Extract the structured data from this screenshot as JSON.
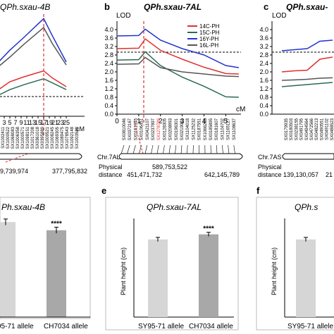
{
  "panel_b": {
    "letter": "b",
    "title": "QPh.sxau-7AL",
    "lod_label": "LOD",
    "cm_label": "cM",
    "chr_label": "Chr.7AL",
    "phys_label": "Physical",
    "dist_label": "distance",
    "pos_left": "451,471,732",
    "pos_mid": "589,753,522",
    "pos_right": "642,145,789",
    "markers": [
      "SX0810046",
      "SX0372167",
      "SX0161945",
      "SX0106451",
      "SX0421107",
      "SX0237897",
      "SX1278789",
      "SX0128305",
      "SX0208993",
      "SX0196301",
      "SX0219021",
      "SX1104018",
      "SX1125232",
      "SX0187551",
      "SX1066283",
      "SX0185895",
      "SX0181607",
      "SX1104702",
      "SX1165127",
      "SX1108637"
    ]
  },
  "panel_c": {
    "letter": "c",
    "title": "QPh.sxau-",
    "lod_label": "LOD",
    "chr_label": "Chr.7AS",
    "phys_label": "Physical",
    "dist_label": "distance",
    "pos_left": "139,130,057",
    "pos_right": "21",
    "markers": [
      "SX0179935",
      "SX0180503",
      "SX0238155",
      "SX0491795",
      "SX0494564",
      "SX0472566",
      "SX0482213",
      "SX0490551",
      "SX0491102",
      "SX0488523"
    ]
  },
  "panel_a": {
    "title": "QPh.sxau-4B",
    "cm_label": "cM",
    "pos_left": "9,739,974",
    "pos_right": "377,795,832",
    "markers": [
      "SX1002411",
      "SX1000522",
      "SX1068083",
      "SX1006358",
      "SX1000571",
      "SX1098151",
      "SX1017208",
      "SX0361018",
      "SX0395889",
      "SX1009521",
      "SX1008245",
      "SX1069305",
      "SX1089475",
      "SX1078543",
      "SX1092148",
      "SX1003589"
    ]
  },
  "panel_d": {
    "title": "Ph.sxau-4B",
    "bar2_label": "CH7034 allele",
    "bar1_label_partial": "95-71 allele",
    "sig": "****"
  },
  "panel_e": {
    "letter": "e",
    "title": "QPh.sxau-7AL",
    "ylabel": "Plant height (cm)",
    "bar1_label": "SY95-71 allele",
    "bar2_label": "CH7034 allele",
    "sig": "****"
  },
  "panel_f": {
    "letter": "f",
    "title": "QPh.s",
    "ylabel": "Plant height (cm)",
    "bar1_label": "SY95-71 allele"
  },
  "chart_data": [
    {
      "type": "line",
      "panel": "b",
      "ylabel": "LOD",
      "xlabel": "cM",
      "xlim": [
        0,
        5.7
      ],
      "ylim": [
        0,
        4.4
      ],
      "x_ticks": [
        0,
        1,
        2,
        3,
        4,
        5
      ],
      "y_ticks": [
        0,
        0.4,
        0.8,
        1.2,
        1.6,
        2.0,
        2.4,
        2.8,
        3.2,
        3.6,
        4.0
      ],
      "threshold": 2.5,
      "peak_x": 1.3,
      "series": [
        {
          "name": "14C-PH",
          "color": "#e03030",
          "x": [
            0,
            1.0,
            1.3,
            2.0,
            3.0,
            4.0,
            5.0,
            5.6
          ],
          "values": [
            3.1,
            3.12,
            3.56,
            3.02,
            2.6,
            2.22,
            1.92,
            1.9
          ]
        },
        {
          "name": "15C-PH",
          "color": "#2b6b55",
          "x": [
            0,
            1.0,
            1.3,
            2.0,
            3.0,
            4.0,
            5.0,
            5.6
          ],
          "values": [
            2.56,
            2.58,
            2.95,
            2.3,
            1.75,
            1.32,
            0.82,
            0.8
          ]
        },
        {
          "name": "16Y-PH",
          "color": "#2233cc",
          "x": [
            0,
            1.0,
            1.3,
            2.0,
            3.0,
            4.0,
            5.0,
            5.6
          ],
          "values": [
            3.7,
            3.72,
            4.02,
            3.5,
            3.1,
            2.8,
            2.3,
            2.2
          ]
        },
        {
          "name": "16L-PH",
          "color": "#555555",
          "x": [
            0,
            1.0,
            1.3,
            2.0,
            3.0,
            4.0,
            5.0,
            5.6
          ],
          "values": [
            2.36,
            2.38,
            2.68,
            2.2,
            2.0,
            1.9,
            1.8,
            1.78
          ]
        }
      ]
    },
    {
      "type": "line",
      "panel": "c",
      "ylabel": "LOD",
      "ylim": [
        0,
        4.4
      ],
      "y_ticks": [
        0,
        0.4,
        0.8,
        1.2,
        1.6,
        2.0,
        2.4,
        2.8,
        3.2,
        3.6,
        4.0
      ],
      "threshold": 2.5,
      "series": [
        {
          "name": "14C-PH",
          "color": "#e03030",
          "x": [
            0,
            1,
            2,
            3,
            4
          ],
          "values": [
            2.0,
            2.05,
            2.08,
            2.6,
            2.7
          ]
        },
        {
          "name": "15C-PH",
          "color": "#2b6b55",
          "x": [
            0,
            1,
            2,
            3,
            4
          ],
          "values": [
            1.3,
            1.35,
            1.4,
            1.45,
            1.5
          ]
        },
        {
          "name": "16Y-PH",
          "color": "#2233cc",
          "x": [
            0,
            1,
            2,
            3,
            4
          ],
          "values": [
            3.0,
            3.05,
            3.1,
            3.45,
            3.5
          ]
        },
        {
          "name": "16L-PH",
          "color": "#555555",
          "x": [
            0,
            1,
            2,
            3,
            4
          ],
          "values": [
            1.6,
            1.62,
            1.65,
            1.7,
            1.72
          ]
        }
      ]
    },
    {
      "type": "line",
      "panel": "a",
      "xlabel": "cM",
      "xlim": [
        0,
        26
      ],
      "x_ticks": [
        0,
        1,
        3,
        5,
        7,
        9,
        11,
        13,
        15,
        17,
        19,
        21,
        23,
        25
      ],
      "tick_labels": [
        "0",
        "1",
        "3",
        "5",
        "7",
        "9",
        "11",
        "13",
        "15",
        "17",
        "19",
        "21",
        "23",
        "25"
      ],
      "threshold": 2.5,
      "peak_x": 17,
      "series": [
        {
          "name": "16Y-PH",
          "color": "#2233cc",
          "x": [
            0,
            5,
            10,
            17,
            20,
            25
          ],
          "values": [
            5.2,
            6.7,
            8.0,
            9.9,
            8.2,
            5.5
          ]
        },
        {
          "name": "16L-PH",
          "color": "#555555",
          "x": [
            0,
            5,
            10,
            17,
            20,
            25
          ],
          "values": [
            4.8,
            6.0,
            7.3,
            9.0,
            7.4,
            5.2
          ]
        },
        {
          "name": "14C-PH",
          "color": "#e03030",
          "x": [
            0,
            5,
            10,
            17,
            20,
            25
          ],
          "values": [
            2.5,
            3.5,
            4.0,
            4.6,
            3.9,
            3.0
          ]
        },
        {
          "name": "15C-PH",
          "color": "#2b6b55",
          "x": [
            0,
            5,
            10,
            17,
            20,
            25
          ],
          "values": [
            2.0,
            2.7,
            3.2,
            3.8,
            3.4,
            2.7
          ]
        }
      ]
    },
    {
      "type": "bar",
      "panel": "d",
      "categories": [
        "95-71 allele",
        "CH7034 allele"
      ],
      "values": [
        93,
        85
      ],
      "errors": [
        1.5,
        1.5
      ],
      "colors": [
        "#d6d6d6",
        "#a8a8a8"
      ],
      "ylim": [
        0,
        100
      ]
    },
    {
      "type": "bar",
      "panel": "e",
      "categories": [
        "SY95-71 allele",
        "CH7034 allele"
      ],
      "values": [
        76,
        81
      ],
      "errors": [
        1.0,
        1.0
      ],
      "colors": [
        "#d6d6d6",
        "#a8a8a8"
      ],
      "ylim": [
        0,
        100
      ],
      "ylabel": "Plant height (cm)"
    },
    {
      "type": "bar",
      "panel": "f",
      "categories": [
        "SY95-71 allele"
      ],
      "values": [
        76
      ],
      "errors": [
        1.0
      ],
      "colors": [
        "#d6d6d6"
      ],
      "ylim": [
        0,
        100
      ],
      "ylabel": "Plant height (cm)"
    }
  ]
}
